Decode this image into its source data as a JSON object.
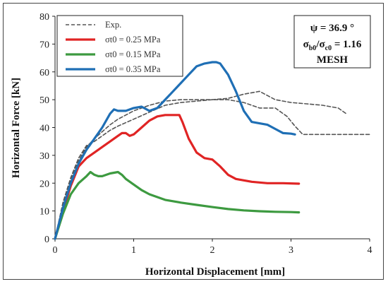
{
  "chart_data": {
    "type": "line",
    "xlabel": "Horizontal Displacement [mm]",
    "ylabel": "Horizontal Force [kN]",
    "xlim": [
      0,
      4
    ],
    "ylim": [
      0,
      80
    ],
    "xticks": [
      "0",
      "1",
      "2",
      "3",
      "4"
    ],
    "yticks": [
      "0",
      "10",
      "20",
      "30",
      "40",
      "50",
      "60",
      "70",
      "80"
    ],
    "grid": false,
    "legend_position": "top-left",
    "annotation": {
      "line1": "ψ = 36.9 °",
      "line2_a": "σ",
      "line2_a_sub": "b0",
      "line2_b": "/σ",
      "line2_b_sub": "c0",
      "line2_c": " = 1.16",
      "line3": "MESH"
    },
    "series": [
      {
        "name": "Exp.",
        "color": "#555555",
        "style": "dashed",
        "x": [
          0,
          0.1,
          0.2,
          0.3,
          0.4,
          0.5,
          0.6,
          0.7,
          0.8,
          0.9,
          1.0,
          1.2,
          1.4,
          1.6,
          1.8,
          2.0,
          2.2,
          2.4,
          2.6,
          2.8,
          3.0,
          3.2,
          3.4,
          3.6,
          3.7
        ],
        "y": [
          0,
          12,
          21,
          28,
          33,
          36,
          38.5,
          41,
          43,
          44.5,
          46,
          48,
          49.5,
          50,
          50,
          50,
          50.5,
          52,
          53,
          50,
          49,
          48.5,
          48,
          47,
          45
        ]
      },
      {
        "name": "",
        "color": "#555555",
        "style": "dashed",
        "x": [
          0,
          0.1,
          0.2,
          0.3,
          0.4,
          0.5,
          0.6,
          0.7,
          0.8,
          1.0,
          1.2,
          1.4,
          1.6,
          1.8,
          2.0,
          2.2,
          2.4,
          2.6,
          2.8,
          2.95,
          3.05,
          3.15,
          3.3,
          3.6,
          4.0
        ],
        "y": [
          0,
          13,
          22,
          29,
          33.5,
          35,
          37,
          39,
          40.5,
          43,
          45.5,
          48,
          49,
          49.5,
          50,
          50,
          49,
          47,
          47,
          44,
          40.5,
          37.5,
          37.5,
          37.5,
          37.5
        ]
      },
      {
        "name": "σt0 = 0.25 MPa",
        "color": "#e02424",
        "style": "solid",
        "x": [
          0,
          0.1,
          0.2,
          0.3,
          0.4,
          0.5,
          0.6,
          0.7,
          0.8,
          0.85,
          0.9,
          0.95,
          1.0,
          1.1,
          1.2,
          1.3,
          1.4,
          1.5,
          1.58,
          1.62,
          1.7,
          1.8,
          1.9,
          2.0,
          2.1,
          2.2,
          2.3,
          2.4,
          2.5,
          2.7,
          2.9,
          3.1
        ],
        "y": [
          0,
          10,
          19,
          26,
          29,
          31,
          33,
          35,
          37,
          38,
          38,
          37,
          37.5,
          40,
          42.5,
          44,
          44.5,
          44.5,
          44.5,
          42,
          36,
          31,
          29,
          28.5,
          26,
          23,
          21.5,
          21,
          20.5,
          20,
          20,
          19.8
        ]
      },
      {
        "name": "σt0 = 0.15 MPa",
        "color": "#3d9a40",
        "style": "solid",
        "x": [
          0,
          0.1,
          0.2,
          0.3,
          0.4,
          0.45,
          0.5,
          0.55,
          0.6,
          0.7,
          0.8,
          0.85,
          0.9,
          1.0,
          1.1,
          1.2,
          1.4,
          1.6,
          1.8,
          2.0,
          2.2,
          2.4,
          2.6,
          2.8,
          3.0,
          3.1
        ],
        "y": [
          0,
          9,
          16,
          20,
          22.5,
          24,
          23,
          22.5,
          22.5,
          23.5,
          24,
          23,
          21.5,
          19.5,
          17.5,
          16,
          14,
          13,
          12.2,
          11.4,
          10.7,
          10.2,
          9.9,
          9.7,
          9.6,
          9.5
        ]
      },
      {
        "name": "σt0 = 0.35 MPa",
        "color": "#1f6fb5",
        "style": "solid",
        "x": [
          0,
          0.1,
          0.2,
          0.3,
          0.4,
          0.5,
          0.6,
          0.7,
          0.75,
          0.8,
          0.9,
          1.0,
          1.1,
          1.2,
          1.3,
          1.4,
          1.5,
          1.6,
          1.7,
          1.8,
          1.9,
          2.0,
          2.05,
          2.1,
          2.2,
          2.3,
          2.4,
          2.5,
          2.6,
          2.7,
          2.8,
          2.9,
          3.0,
          3.05
        ],
        "y": [
          0,
          11,
          20,
          27,
          32,
          36,
          40,
          45,
          46.5,
          46,
          46,
          47,
          47.5,
          46,
          47,
          50,
          53,
          56,
          59,
          62,
          63,
          63.5,
          63.5,
          63,
          59,
          53,
          46,
          42,
          41.5,
          41,
          39.5,
          38,
          37.8,
          37.5
        ]
      }
    ]
  }
}
